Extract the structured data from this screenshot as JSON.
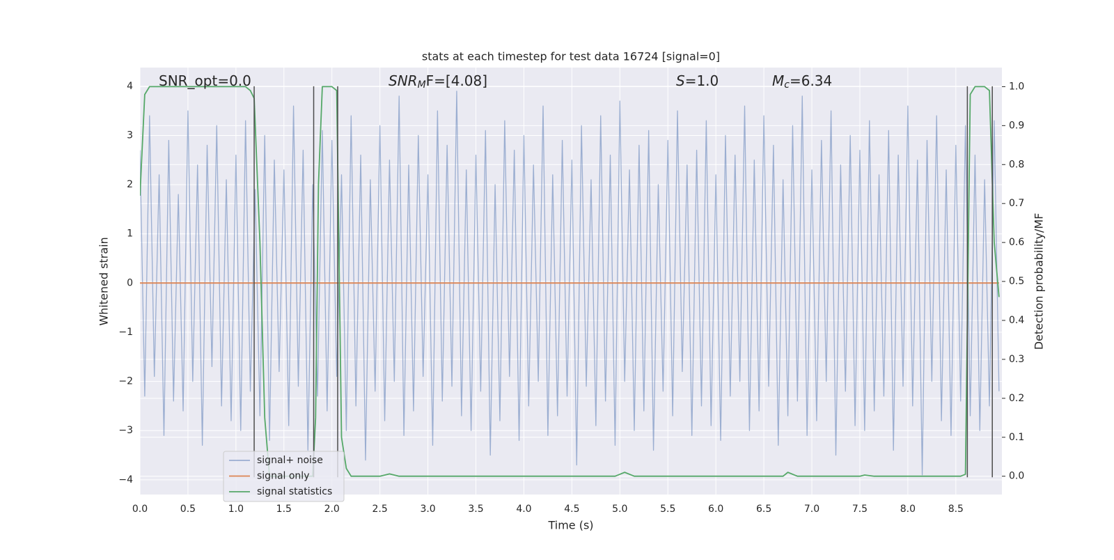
{
  "chart_data": {
    "type": "line",
    "title": "stats at each timestep for test data 16724 [signal=0]",
    "xlabel": "Time (s)",
    "ylabel": "Whitened strain",
    "y2label": "Detection probability/MF",
    "annotations": [
      {
        "base": "SNR_opt=0.0"
      },
      {
        "base": "SNR",
        "sub": "M",
        "after": "F=[4.08]"
      },
      {
        "base": "S",
        "after": "=1.0"
      },
      {
        "base": "M",
        "sub": "c",
        "after": "=6.34"
      }
    ],
    "xlim": [
      0,
      8.98
    ],
    "xticks": [
      {
        "value": 0,
        "label": "0.0"
      },
      0.5,
      {
        "value": 1,
        "label": "1.0"
      },
      1.5,
      {
        "value": 2,
        "label": "2.0"
      },
      2.5,
      {
        "value": 3,
        "label": "3.0"
      },
      3.5,
      {
        "value": 4,
        "label": "4.0"
      },
      4.5,
      {
        "value": 5,
        "label": "5.0"
      },
      5.5,
      {
        "value": 6,
        "label": "6.0"
      },
      6.5,
      {
        "value": 7,
        "label": "7.0"
      },
      7.5,
      {
        "value": 8,
        "label": "8.0"
      },
      8.5
    ],
    "ylim": [
      -4.3,
      4.38
    ],
    "yticks": [
      {
        "value": -4,
        "label": "−4"
      },
      {
        "value": -3,
        "label": "−3"
      },
      {
        "value": -2,
        "label": "−2"
      },
      {
        "value": -1,
        "label": "−1"
      },
      0,
      1,
      2,
      3,
      4
    ],
    "y2lim": [
      -0.047,
      1.049
    ],
    "y2ticks": [
      {
        "value": 0,
        "label": "0.0"
      },
      0.1,
      0.2,
      0.3,
      0.4,
      0.5,
      0.6,
      0.7,
      0.8,
      0.9,
      {
        "value": 1,
        "label": "1.0"
      }
    ],
    "grid": true,
    "legend": "lower left",
    "vlines": {
      "x": [
        1.19,
        1.81,
        2.06,
        8.62,
        8.88
      ],
      "span": [
        -3.95,
        4
      ],
      "color": "#4c4c4c"
    },
    "series": [
      {
        "name": "signal+ noise",
        "color": "#4c72b0",
        "alpha": 0.5,
        "x": [
          0,
          0.05,
          0.1,
          0.15,
          0.2,
          0.25,
          0.3,
          0.35,
          0.4,
          0.45,
          0.5,
          0.55,
          0.6,
          0.65,
          0.7,
          0.75,
          0.8,
          0.85,
          0.9,
          0.95,
          1,
          1.05,
          1.1,
          1.15,
          1.2,
          1.25,
          1.3,
          1.35,
          1.4,
          1.45,
          1.5,
          1.55,
          1.6,
          1.65,
          1.7,
          1.75,
          1.8,
          1.85,
          1.9,
          1.95,
          2,
          2.05,
          2.1,
          2.15,
          2.2,
          2.25,
          2.3,
          2.35,
          2.4,
          2.45,
          2.5,
          2.55,
          2.6,
          2.65,
          2.7,
          2.75,
          2.8,
          2.85,
          2.9,
          2.95,
          3,
          3.05,
          3.1,
          3.15,
          3.2,
          3.25,
          3.3,
          3.35,
          3.4,
          3.45,
          3.5,
          3.55,
          3.6,
          3.65,
          3.7,
          3.75,
          3.8,
          3.85,
          3.9,
          3.95,
          4,
          4.05,
          4.1,
          4.15,
          4.2,
          4.25,
          4.3,
          4.35,
          4.4,
          4.45,
          4.5,
          4.55,
          4.6,
          4.65,
          4.7,
          4.75,
          4.8,
          4.85,
          4.9,
          4.95,
          5,
          5.05,
          5.1,
          5.15,
          5.2,
          5.25,
          5.3,
          5.35,
          5.4,
          5.45,
          5.5,
          5.55,
          5.6,
          5.65,
          5.7,
          5.75,
          5.8,
          5.85,
          5.9,
          5.95,
          6,
          6.05,
          6.1,
          6.15,
          6.2,
          6.25,
          6.3,
          6.35,
          6.4,
          6.45,
          6.5,
          6.55,
          6.6,
          6.65,
          6.7,
          6.75,
          6.8,
          6.85,
          6.9,
          6.95,
          7,
          7.05,
          7.1,
          7.15,
          7.2,
          7.25,
          7.3,
          7.35,
          7.4,
          7.45,
          7.5,
          7.55,
          7.6,
          7.65,
          7.7,
          7.75,
          7.8,
          7.85,
          7.9,
          7.95,
          8,
          8.05,
          8.1,
          8.15,
          8.2,
          8.25,
          8.3,
          8.35,
          8.4,
          8.45,
          8.5,
          8.55,
          8.6,
          8.65,
          8.7,
          8.75,
          8.8,
          8.85,
          8.9,
          8.95
        ],
        "values": [
          2.7,
          -2.3,
          3.4,
          -1.9,
          2.2,
          -3.1,
          2.9,
          -2.4,
          1.8,
          -2.6,
          3.5,
          -2.0,
          2.4,
          -3.3,
          2.8,
          -1.7,
          3.2,
          -2.5,
          2.1,
          -2.8,
          2.6,
          -3.0,
          3.3,
          -2.2,
          1.9,
          -2.7,
          3.0,
          -3.2,
          2.5,
          -1.8,
          2.3,
          -2.9,
          3.6,
          -2.1,
          2.7,
          -3.4,
          2.0,
          -2.3,
          3.1,
          -2.6,
          2.9,
          -1.9,
          2.2,
          -3.0,
          3.4,
          -2.5,
          2.6,
          -3.6,
          2.1,
          -2.2,
          3.2,
          -2.8,
          2.5,
          -2.0,
          3.8,
          -3.1,
          2.4,
          -2.6,
          3.0,
          -1.9,
          2.2,
          -3.3,
          3.5,
          -2.4,
          2.8,
          -2.1,
          3.9,
          -2.7,
          2.3,
          -3.0,
          2.6,
          -2.2,
          3.1,
          -3.5,
          2.0,
          -2.8,
          3.3,
          -1.9,
          2.7,
          -3.2,
          3.0,
          -2.5,
          2.4,
          -2.0,
          3.6,
          -3.1,
          2.2,
          -2.7,
          2.9,
          -2.3,
          2.5,
          -3.7,
          3.2,
          -2.1,
          2.1,
          -2.9,
          3.4,
          -2.4,
          2.6,
          -3.3,
          3.7,
          -2.0,
          2.3,
          -3.0,
          2.8,
          -2.6,
          3.1,
          -3.4,
          2.0,
          -2.2,
          2.9,
          -2.7,
          3.5,
          -1.8,
          2.4,
          -3.1,
          2.7,
          -2.5,
          3.3,
          -2.9,
          2.2,
          -3.2,
          3.0,
          -2.3,
          2.6,
          -2.0,
          3.6,
          -3.0,
          2.5,
          -2.6,
          3.4,
          -2.1,
          2.8,
          -3.3,
          2.1,
          -2.7,
          3.2,
          -2.4,
          3.8,
          -3.1,
          2.3,
          -2.8,
          2.9,
          -2.0,
          3.5,
          -3.5,
          2.4,
          -2.2,
          3.0,
          -2.9,
          2.7,
          -3.0,
          3.3,
          -2.6,
          2.2,
          -2.3,
          3.1,
          -3.4,
          2.6,
          -2.1,
          3.6,
          -2.5,
          2.5,
          -3.9,
          2.9,
          -2.0,
          3.4,
          -2.8,
          2.3,
          -3.1,
          2.8,
          -2.4,
          3.2,
          -2.7,
          2.6,
          -3.0,
          2.1,
          -2.5,
          3.3,
          -2.2
        ]
      },
      {
        "name": "signal only",
        "color": "#dd8452",
        "x": [
          0,
          8.95
        ],
        "values": [
          0,
          0
        ]
      },
      {
        "name": "signal statistics",
        "color": "#55a868",
        "axis": "y2",
        "x": [
          0,
          0.05,
          0.1,
          0.2,
          0.4,
          0.6,
          0.8,
          1,
          1.1,
          1.15,
          1.19,
          1.25,
          1.3,
          1.35,
          1.4,
          1.6,
          1.8,
          1.83,
          1.86,
          1.9,
          1.95,
          2,
          2.05,
          2.1,
          2.15,
          2.2,
          2.5,
          2.6,
          2.7,
          3,
          4,
          4.95,
          5.05,
          5.15,
          6,
          6.7,
          6.75,
          6.85,
          7.5,
          7.55,
          7.65,
          8.55,
          8.6,
          8.65,
          8.7,
          8.8,
          8.85,
          8.9,
          8.95
        ],
        "values": [
          0.72,
          0.98,
          1,
          1,
          1,
          1,
          1,
          1,
          1,
          0.99,
          0.97,
          0.6,
          0.15,
          0,
          0,
          0,
          0,
          0.15,
          0.75,
          1,
          1,
          1,
          0.99,
          0.1,
          0.02,
          0,
          0,
          0.006,
          0,
          0,
          0,
          0,
          0.01,
          0,
          0,
          0,
          0.01,
          0,
          0,
          0.003,
          0,
          0,
          0.005,
          0.98,
          1,
          1,
          0.99,
          0.6,
          0.46
        ]
      }
    ]
  }
}
